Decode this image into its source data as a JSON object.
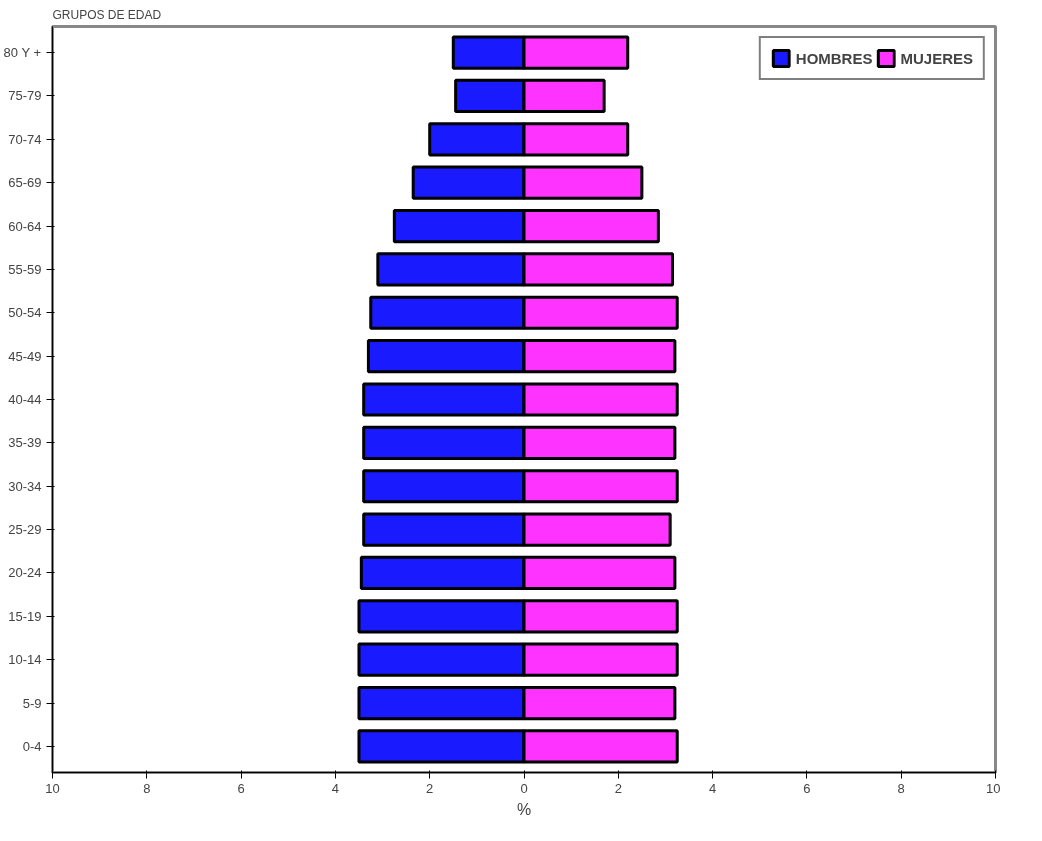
{
  "chart_data": {
    "type": "bar",
    "orientation": "horizontal",
    "stacked": true,
    "ylabel": "GRUPOS DE EDAD",
    "xlabel": "%",
    "categories": [
      "80 Y +",
      "75-79",
      "70-74",
      "65-69",
      "60-64",
      "55-59",
      "50-54",
      "45-49",
      "40-44",
      "35-39",
      "30-34",
      "25-29",
      "20-24",
      "15-19",
      "10-14",
      "5-9",
      "0-4"
    ],
    "series": [
      {
        "name": "HOMBRES",
        "color": "#1a1aff",
        "values": [
          -1.5,
          -1.45,
          -2.0,
          -2.35,
          -2.75,
          -3.1,
          -3.25,
          -3.3,
          -3.4,
          -3.4,
          -3.4,
          -3.4,
          -3.45,
          -3.5,
          -3.5,
          -3.5,
          -3.5
        ]
      },
      {
        "name": "MUJERES",
        "color": "#ff33ff",
        "values": [
          2.2,
          1.7,
          2.2,
          2.5,
          2.85,
          3.15,
          3.25,
          3.2,
          3.25,
          3.2,
          3.25,
          3.1,
          3.2,
          3.25,
          3.25,
          3.2,
          3.25
        ]
      }
    ],
    "xlim": [
      -10,
      10
    ],
    "xticks": [
      {
        "value": -10,
        "label": "10"
      },
      {
        "value": -8,
        "label": "8"
      },
      {
        "value": -6,
        "label": "6"
      },
      {
        "value": -4,
        "label": "4"
      },
      {
        "value": -2,
        "label": "2"
      },
      0,
      2,
      4,
      6,
      8,
      10
    ],
    "grid": false,
    "legend": "top right"
  }
}
